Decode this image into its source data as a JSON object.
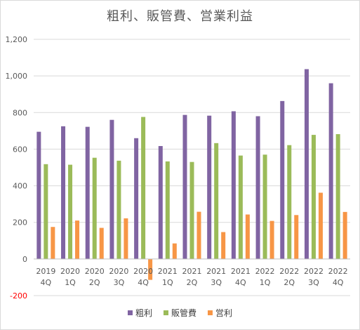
{
  "chart_data": {
    "type": "bar",
    "title": "粗利、販管費、営業利益",
    "categories": [
      [
        "2019",
        "4Q"
      ],
      [
        "2020",
        "1Q"
      ],
      [
        "2020",
        "2Q"
      ],
      [
        "2020",
        "3Q"
      ],
      [
        "2020",
        "4Q"
      ],
      [
        "2021",
        "1Q"
      ],
      [
        "2021",
        "2Q"
      ],
      [
        "2021",
        "3Q"
      ],
      [
        "2021",
        "4Q"
      ],
      [
        "2022",
        "1Q"
      ],
      [
        "2022",
        "2Q"
      ],
      [
        "2022",
        "3Q"
      ],
      [
        "2022",
        "4Q"
      ]
    ],
    "series": [
      {
        "name": "粗利",
        "color": "#8064a2",
        "values": [
          695,
          725,
          722,
          760,
          660,
          617,
          787,
          783,
          807,
          780,
          863,
          1037,
          960
        ]
      },
      {
        "name": "販管費",
        "color": "#9bbb59",
        "values": [
          518,
          515,
          553,
          537,
          776,
          533,
          530,
          633,
          565,
          570,
          622,
          678,
          682
        ]
      },
      {
        "name": "営利",
        "color": "#f79646",
        "values": [
          175,
          210,
          170,
          222,
          -114,
          85,
          258,
          147,
          243,
          208,
          240,
          362,
          257
        ]
      }
    ],
    "ylim": [
      -200,
      1200
    ],
    "ytick_step": 200,
    "ytick_labels": [
      "-200",
      "0",
      "200",
      "400",
      "600",
      "800",
      "1,000",
      "1,200"
    ],
    "negative_tick_color": "#ff0000",
    "grid": true,
    "legend": "bottom"
  }
}
